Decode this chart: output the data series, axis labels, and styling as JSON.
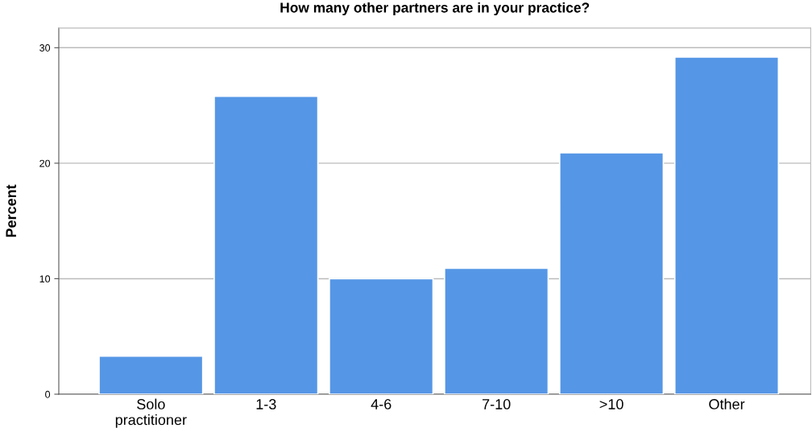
{
  "chart_data": {
    "type": "bar",
    "title": "How many other partners are in your practice?",
    "ylabel": "Percent",
    "categories": [
      "Solo\npractitioner",
      "1-3",
      "4-6",
      "7-10",
      ">10",
      "Other"
    ],
    "values": [
      3.3,
      25.8,
      10.0,
      10.9,
      20.9,
      29.2
    ],
    "color": "#5596e6",
    "ylim": [
      0,
      31.7
    ],
    "yticks": [
      0,
      10,
      20,
      30
    ],
    "grid": "y"
  }
}
